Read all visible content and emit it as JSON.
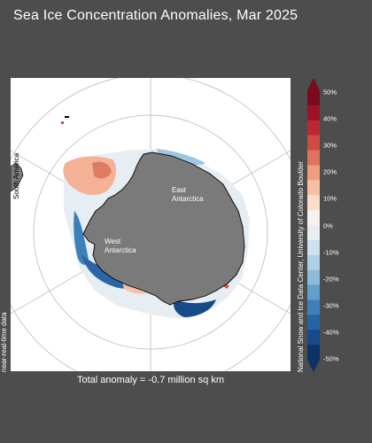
{
  "title": "Sea Ice Concentration Anomalies, Mar 2025",
  "map": {
    "labels": {
      "east": [
        "East",
        "Antarctica"
      ],
      "west": [
        "West",
        "Antarctica"
      ],
      "south_america": "South America"
    }
  },
  "total_anomaly": "Total anomaly = -0.7 million sq km",
  "side_label": "near-real-time data",
  "credit": "National Snow and Ice Data Center, University of Colorado Boulder",
  "colorbar": {
    "ticks": [
      "50%",
      "40%",
      "30%",
      "20%",
      "10%",
      "0%",
      "-10%",
      "-20%",
      "-30%",
      "-40%",
      "-50%"
    ],
    "colors": [
      "#7a0b1f",
      "#9c1327",
      "#bb2a33",
      "#cf4c44",
      "#e0735d",
      "#f09c7f",
      "#f7c0a4",
      "#fbdcc8",
      "#f7f0ec",
      "#e7eef3",
      "#cfe1ec",
      "#aed0e5",
      "#8cbcdc",
      "#629fcc",
      "#3f80bb",
      "#2563a5",
      "#154b89",
      "#0b3366"
    ]
  },
  "colors": {
    "background": "#4d4d4d",
    "land": "#7a7a7a",
    "ocean": "#ffffff"
  }
}
